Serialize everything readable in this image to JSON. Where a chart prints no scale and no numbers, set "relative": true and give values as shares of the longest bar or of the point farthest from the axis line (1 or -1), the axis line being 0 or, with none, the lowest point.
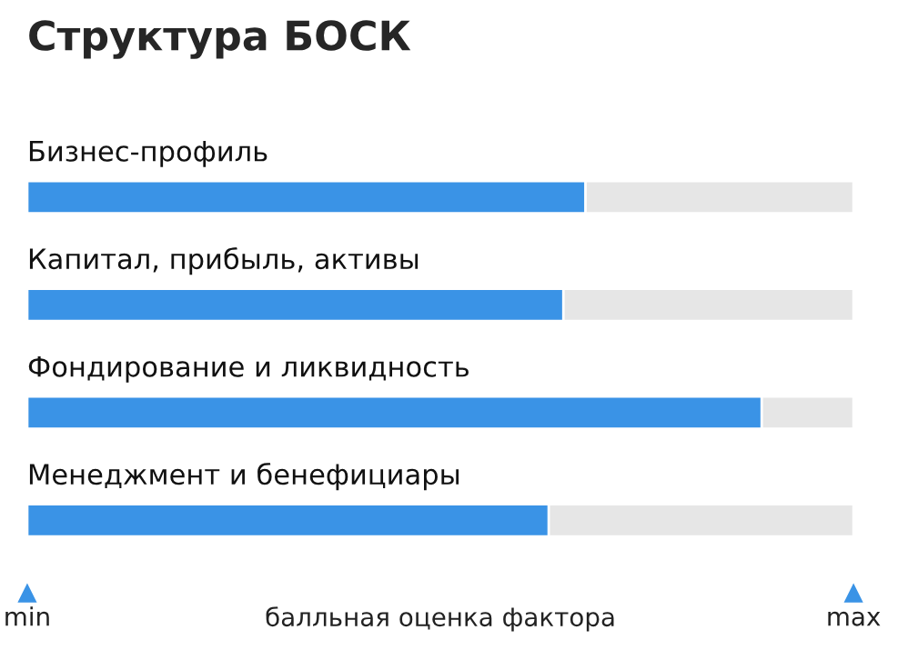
{
  "chart_data": {
    "type": "bar",
    "orientation": "horizontal",
    "title": "Структура БОСК",
    "categories": [
      "Бизнес-профиль",
      "Капитал, прибыль, активы",
      "Фондирование и ликвидность",
      "Менеджмент и бенефициары"
    ],
    "values": [
      0.76,
      0.73,
      1,
      0.71
    ],
    "color": "#3a93e6",
    "relative": true,
    "xlabel": "балльная оценка фактора",
    "annotations": [
      "min",
      "max"
    ],
    "legend": false
  }
}
